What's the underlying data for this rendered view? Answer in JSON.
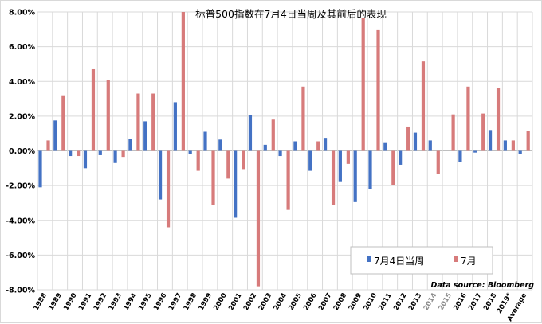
{
  "chart_data": {
    "type": "bar",
    "title": "标普500指数在7月4日当周及其前后的表现",
    "source": "Data source: Bloomberg",
    "ylim": [
      -0.08,
      0.08
    ],
    "yticks": [
      "8.00%",
      "6.00%",
      "4.00%",
      "2.00%",
      "0.00%",
      "-2.00%",
      "-4.00%",
      "-6.00%",
      "-8.00%"
    ],
    "categories": [
      "1988",
      "1989",
      "1990",
      "1991",
      "1992",
      "1993",
      "1994",
      "1995",
      "1996",
      "1997",
      "1998",
      "1999",
      "2000",
      "2001",
      "2002",
      "2003",
      "2004",
      "2005",
      "2006",
      "2007",
      "2008",
      "2009",
      "2010",
      "2011",
      "2012",
      "2013",
      "2014",
      "2015",
      "2016",
      "2017",
      "2018",
      "2019*",
      "Average"
    ],
    "grey_categories": [
      "2014",
      "2015"
    ],
    "series": [
      {
        "name": "7月4日当周",
        "color": "#4472c4",
        "values": [
          -0.021,
          0.0175,
          -0.003,
          -0.01,
          -0.0025,
          -0.007,
          0.007,
          0.017,
          -0.028,
          0.028,
          -0.002,
          0.011,
          0.0065,
          -0.0385,
          0.0205,
          0.0035,
          -0.003,
          0.0055,
          -0.0115,
          0.0075,
          -0.0175,
          -0.0295,
          -0.022,
          0.0045,
          -0.008,
          0.0105,
          0.006,
          0.0,
          -0.0065,
          -0.001,
          0.012,
          0.006,
          -0.002
        ]
      },
      {
        "name": "7月",
        "color": "#d77b7b",
        "values": [
          0.006,
          0.032,
          -0.003,
          0.047,
          0.041,
          -0.0035,
          0.033,
          0.033,
          -0.044,
          0.081,
          -0.0115,
          -0.031,
          -0.016,
          -0.0105,
          -0.078,
          0.018,
          -0.034,
          0.037,
          0.0055,
          -0.031,
          -0.0075,
          0.0765,
          0.0695,
          -0.0195,
          0.014,
          0.0515,
          -0.0135,
          0.021,
          0.037,
          0.0215,
          0.036,
          0.006,
          0.0115
        ]
      }
    ],
    "legend_position": "bottom-right"
  }
}
